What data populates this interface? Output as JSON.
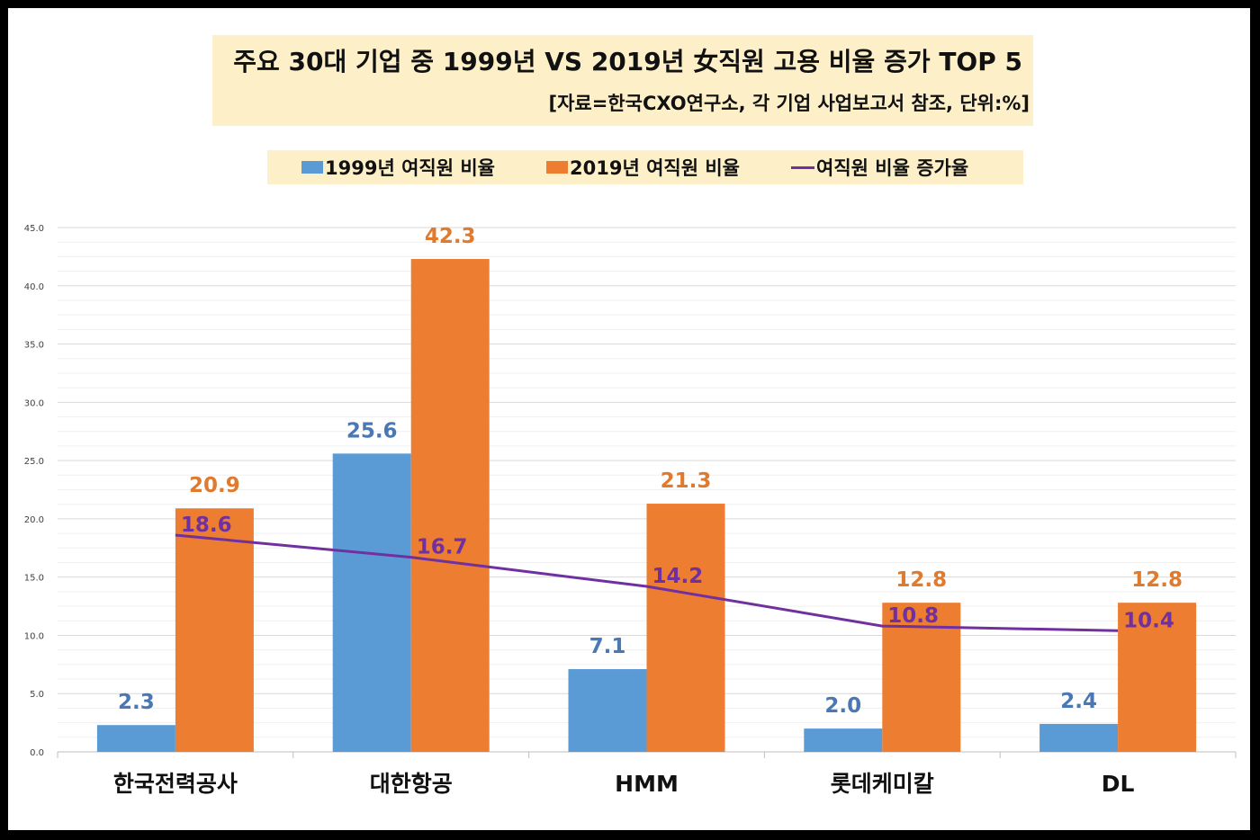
{
  "title": "주요 30대 기업 중 1999년 VS 2019년 女직원 고용 비율 증가 TOP 5",
  "subtitle": "[자료=한국CXO연구소, 각 기업 사업보고서 참조, 단위:%]",
  "colors": {
    "s1999": "#5b9bd5",
    "s2019": "#ed7d31",
    "rate": "#7030a0",
    "rate_label": "#7030a0"
  },
  "chart_data": {
    "type": "bar",
    "title": "주요 30대 기업 중 1999년 VS 2019년 女직원 고용 비율 증가 TOP 5",
    "subtitle": "[자료=한국CXO연구소, 각 기업 사업보고서 참조, 단위:%]",
    "categories": [
      "한국전력공사",
      "대한항공",
      "HMM",
      "롯데케미칼",
      "DL"
    ],
    "series": [
      {
        "name": "1999년 여직원 비율",
        "type": "bar",
        "color": "#5b9bd5",
        "values": [
          2.3,
          25.6,
          7.1,
          2.0,
          2.4
        ]
      },
      {
        "name": "2019년 여직원 비율",
        "type": "bar",
        "color": "#ed7d31",
        "values": [
          20.9,
          42.3,
          21.3,
          12.8,
          12.8
        ]
      },
      {
        "name": "여직원 비율 증가율",
        "type": "line",
        "color": "#7030a0",
        "values": [
          18.6,
          16.7,
          14.2,
          10.8,
          10.4
        ]
      }
    ],
    "ylim": [
      0,
      45
    ],
    "yticks": [
      "0.0",
      "5.0",
      "10.0",
      "15.0",
      "20.0",
      "25.0",
      "30.0",
      "35.0",
      "40.0",
      "45.0"
    ],
    "grid": true,
    "legend": "top"
  }
}
